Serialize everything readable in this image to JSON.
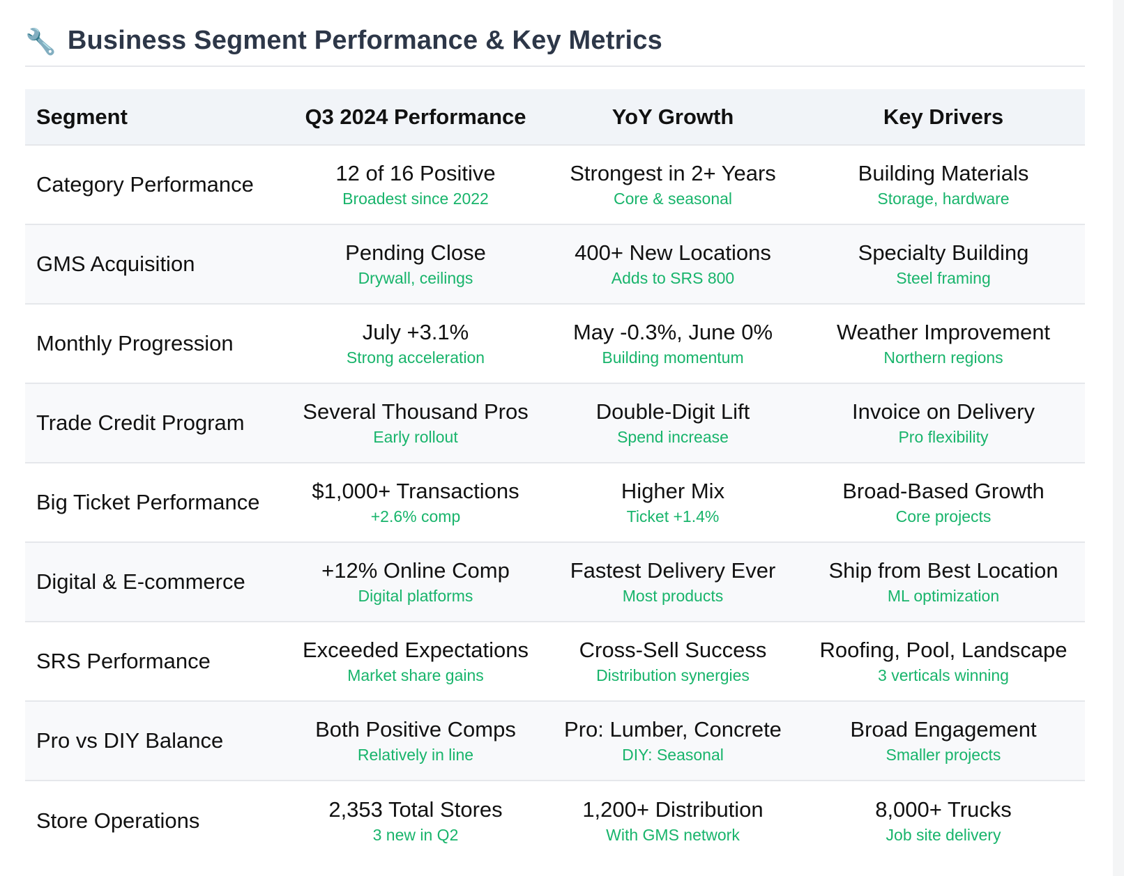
{
  "header": {
    "icon": "wrench-icon",
    "title": "Business Segment Performance & Key Metrics"
  },
  "table": {
    "columns": [
      "Segment",
      "Q3 2024 Performance",
      "YoY Growth",
      "Key Drivers"
    ],
    "rows": [
      {
        "segment": "Category Performance",
        "performance": {
          "main": "12 of 16 Positive",
          "sub": "Broadest since 2022"
        },
        "growth": {
          "main": "Strongest in 2+ Years",
          "sub": "Core & seasonal"
        },
        "drivers": {
          "main": "Building Materials",
          "sub": "Storage, hardware"
        }
      },
      {
        "segment": "GMS Acquisition",
        "performance": {
          "main": "Pending Close",
          "sub": "Drywall, ceilings"
        },
        "growth": {
          "main": "400+ New Locations",
          "sub": "Adds to SRS 800"
        },
        "drivers": {
          "main": "Specialty Building",
          "sub": "Steel framing"
        }
      },
      {
        "segment": "Monthly Progression",
        "performance": {
          "main": "July +3.1%",
          "sub": "Strong acceleration"
        },
        "growth": {
          "main": "May -0.3%, June 0%",
          "sub": "Building momentum"
        },
        "drivers": {
          "main": "Weather Improvement",
          "sub": "Northern regions"
        }
      },
      {
        "segment": "Trade Credit Program",
        "performance": {
          "main": "Several Thousand Pros",
          "sub": "Early rollout"
        },
        "growth": {
          "main": "Double-Digit Lift",
          "sub": "Spend increase"
        },
        "drivers": {
          "main": "Invoice on Delivery",
          "sub": "Pro flexibility"
        }
      },
      {
        "segment": "Big Ticket Performance",
        "performance": {
          "main": "$1,000+ Transactions",
          "sub": "+2.6% comp"
        },
        "growth": {
          "main": "Higher Mix",
          "sub": "Ticket +1.4%"
        },
        "drivers": {
          "main": "Broad-Based Growth",
          "sub": "Core projects"
        }
      },
      {
        "segment": "Digital & E-commerce",
        "performance": {
          "main": "+12% Online Comp",
          "sub": "Digital platforms"
        },
        "growth": {
          "main": "Fastest Delivery Ever",
          "sub": "Most products"
        },
        "drivers": {
          "main": "Ship from Best Location",
          "sub": "ML optimization"
        }
      },
      {
        "segment": "SRS Performance",
        "performance": {
          "main": "Exceeded Expectations",
          "sub": "Market share gains"
        },
        "growth": {
          "main": "Cross-Sell Success",
          "sub": "Distribution synergies"
        },
        "drivers": {
          "main": "Roofing, Pool, Landscape",
          "sub": "3 verticals winning"
        }
      },
      {
        "segment": "Pro vs DIY Balance",
        "performance": {
          "main": "Both Positive Comps",
          "sub": "Relatively in line"
        },
        "growth": {
          "main": "Pro: Lumber, Concrete",
          "sub": "DIY: Seasonal"
        },
        "drivers": {
          "main": "Broad Engagement",
          "sub": "Smaller projects"
        }
      },
      {
        "segment": "Store Operations",
        "performance": {
          "main": "2,353 Total Stores",
          "sub": "3 new in Q2"
        },
        "growth": {
          "main": "1,200+ Distribution",
          "sub": "With GMS network"
        },
        "drivers": {
          "main": "8,000+ Trucks",
          "sub": "Job site delivery"
        }
      }
    ]
  },
  "colors": {
    "title": "#2d3748",
    "accent_sub": "#18b46b",
    "header_bg": "#f1f4f8",
    "row_alt_bg": "#f8f9fb",
    "divider": "#e5e7eb"
  }
}
